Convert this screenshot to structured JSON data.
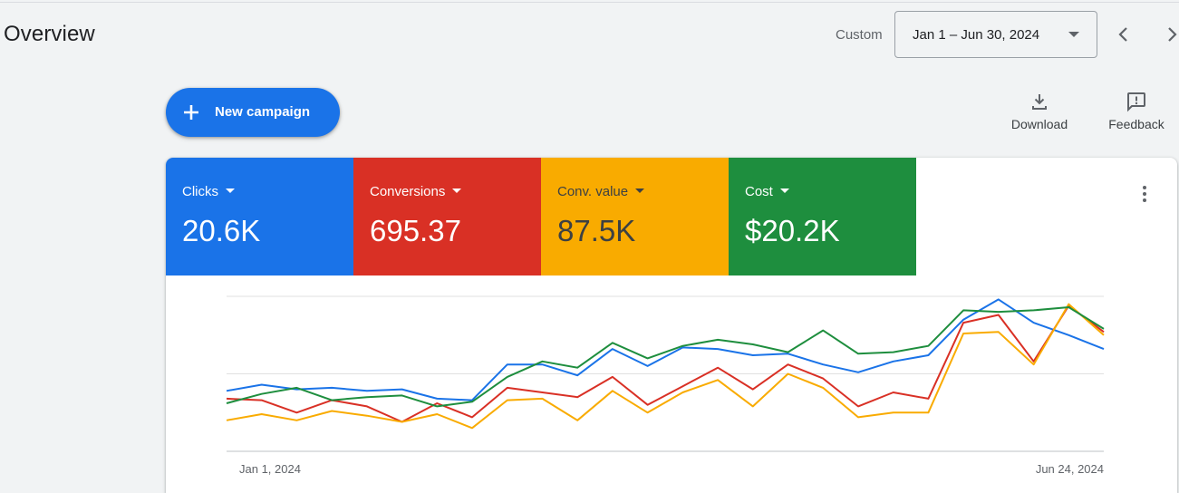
{
  "header": {
    "title": "Overview",
    "custom_label": "Custom",
    "date_range": "Jan 1 – Jun 30, 2024",
    "prev_icon": "chevron-left-icon",
    "next_icon": "chevron-right-icon"
  },
  "toolbar": {
    "new_campaign_label": "New campaign",
    "download_label": "Download",
    "feedback_label": "Feedback"
  },
  "metrics": [
    {
      "name": "Clicks",
      "value": "20.6K",
      "color": "#1a73e8"
    },
    {
      "name": "Conversions",
      "value": "695.37",
      "color": "#d93025"
    },
    {
      "name": "Conv. value",
      "value": "87.5K",
      "color": "#f9ab00"
    },
    {
      "name": "Cost",
      "value": "$20.2K",
      "color": "#1e8e3e"
    }
  ],
  "chart_data": {
    "type": "line",
    "x_tick_labels": [
      "Jan 1, 2024",
      "Jun 24, 2024"
    ],
    "ylim": [
      0,
      1
    ],
    "grid": true,
    "series": [
      {
        "color": "#1a73e8",
        "values": [
          0.39,
          0.43,
          0.4,
          0.41,
          0.39,
          0.4,
          0.34,
          0.33,
          0.56,
          0.56,
          0.49,
          0.66,
          0.55,
          0.67,
          0.66,
          0.62,
          0.63,
          0.56,
          0.51,
          0.58,
          0.62,
          0.85,
          0.98,
          0.83,
          0.75,
          0.66
        ]
      },
      {
        "color": "#d93025",
        "values": [
          0.34,
          0.33,
          0.25,
          0.33,
          0.29,
          0.19,
          0.31,
          0.22,
          0.41,
          0.38,
          0.35,
          0.48,
          0.3,
          0.42,
          0.54,
          0.4,
          0.56,
          0.47,
          0.29,
          0.38,
          0.34,
          0.83,
          0.88,
          0.58,
          0.94,
          0.77
        ]
      },
      {
        "color": "#f9ab00",
        "values": [
          0.2,
          0.24,
          0.2,
          0.26,
          0.23,
          0.19,
          0.24,
          0.15,
          0.33,
          0.34,
          0.2,
          0.39,
          0.25,
          0.38,
          0.46,
          0.29,
          0.5,
          0.41,
          0.22,
          0.25,
          0.25,
          0.76,
          0.77,
          0.56,
          0.95,
          0.75
        ]
      },
      {
        "color": "#1e8e3e",
        "values": [
          0.31,
          0.37,
          0.41,
          0.33,
          0.35,
          0.36,
          0.29,
          0.32,
          0.48,
          0.58,
          0.54,
          0.7,
          0.6,
          0.68,
          0.72,
          0.69,
          0.64,
          0.78,
          0.63,
          0.64,
          0.68,
          0.91,
          0.9,
          0.91,
          0.93,
          0.79
        ]
      }
    ]
  }
}
